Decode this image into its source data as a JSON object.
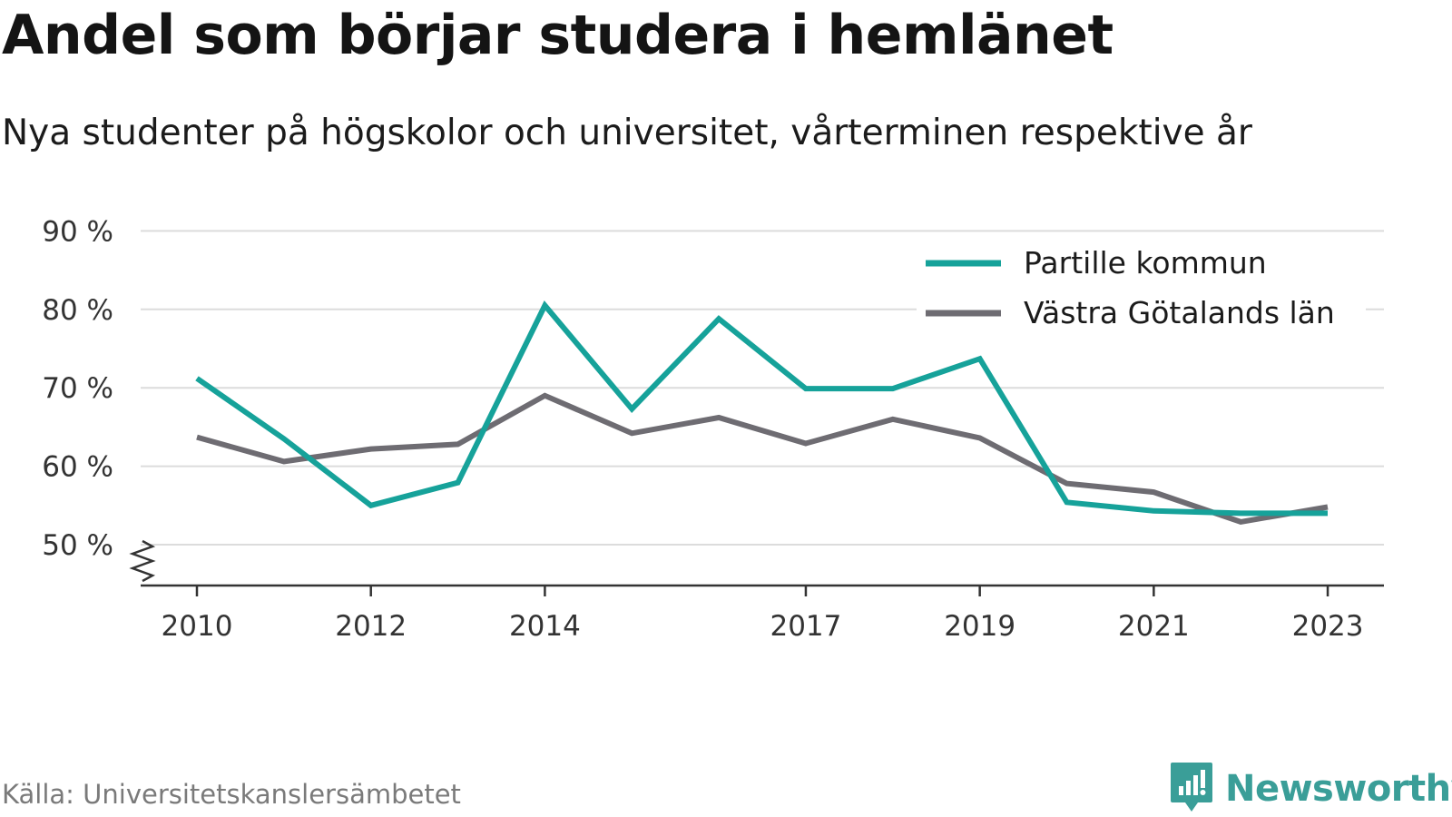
{
  "header": {
    "title": "Andel som börjar studera i hemlänet",
    "subtitle": "Nya studenter på högskolor och universitet, vårterminen respektive år"
  },
  "footer": {
    "source": "Källa: Universitetskanslersämbetet",
    "brand": "Newsworthy",
    "brand_icon": "chart-bubble-icon"
  },
  "colors": {
    "partille": "#16a29a",
    "vastra_gotaland": "#6e6c72",
    "grid": "#dcdcdc",
    "axis": "#333333",
    "brand": "#3a9e98"
  },
  "chart_data": {
    "type": "line",
    "x": [
      2010,
      2011,
      2012,
      2013,
      2014,
      2015,
      2016,
      2017,
      2018,
      2019,
      2020,
      2021,
      2022,
      2023
    ],
    "x_tick_labels": [
      "2010",
      "2012",
      "2014",
      "2017",
      "2019",
      "2021",
      "2023"
    ],
    "x_ticks": [
      2010,
      2012,
      2014,
      2017,
      2019,
      2021,
      2023
    ],
    "y_ticks": [
      50,
      60,
      70,
      80,
      90
    ],
    "y_tick_labels": [
      "50 %",
      "60 %",
      "70 %",
      "80 %",
      "90 %"
    ],
    "ylim": [
      45,
      90
    ],
    "y_axis_break": true,
    "grid": true,
    "legend_position": "top-right",
    "series": [
      {
        "name": "Partille kommun",
        "values": [
          71.2,
          63.5,
          55.0,
          57.9,
          80.5,
          67.3,
          78.8,
          69.9,
          69.9,
          73.7,
          55.4,
          54.3,
          54.0,
          54.0
        ]
      },
      {
        "name": "Västra Götalands län",
        "values": [
          63.7,
          60.6,
          62.2,
          62.8,
          69.0,
          64.2,
          66.2,
          62.9,
          66.0,
          63.6,
          57.8,
          56.7,
          52.9,
          54.8
        ]
      }
    ]
  }
}
